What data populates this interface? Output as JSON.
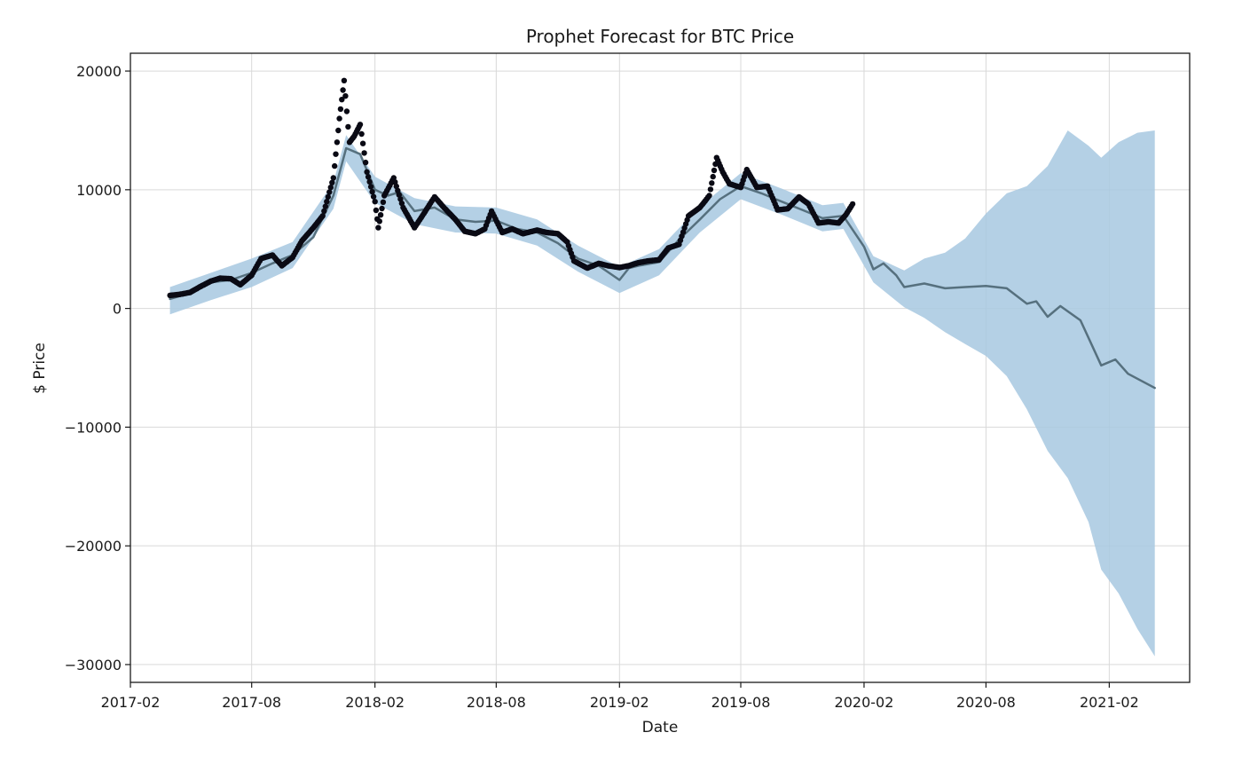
{
  "chart_data": {
    "type": "line",
    "title": "Prophet Forecast for BTC Price",
    "xlabel": "Date",
    "ylabel": "$ Price",
    "x_axis_type": "date",
    "xlim": [
      "2017-02-01",
      "2021-06-01"
    ],
    "ylim": [
      -31500,
      21500
    ],
    "grid": true,
    "x_ticks": [
      "2017-02",
      "2017-08",
      "2018-02",
      "2018-08",
      "2019-02",
      "2019-08",
      "2020-02",
      "2020-08",
      "2021-02"
    ],
    "y_ticks": [
      20000,
      10000,
      0,
      -10000,
      -20000,
      -30000
    ],
    "y_tick_labels": [
      "20000",
      "10000",
      "0",
      "−10000",
      "−20000",
      "−30000"
    ],
    "colors": {
      "observed": "#0a0a14",
      "forecast": "#56707e",
      "interval": "#a7c8e1"
    },
    "series": [
      {
        "kind": "observed_points",
        "points": [
          [
            "2017-04-01",
            1100
          ],
          [
            "2017-04-15",
            1180
          ],
          [
            "2017-05-01",
            1350
          ],
          [
            "2017-05-15",
            1800
          ],
          [
            "2017-06-01",
            2300
          ],
          [
            "2017-06-15",
            2550
          ],
          [
            "2017-07-01",
            2500
          ],
          [
            "2017-07-15",
            2000
          ],
          [
            "2017-08-01",
            2800
          ],
          [
            "2017-08-15",
            4200
          ],
          [
            "2017-09-01",
            4500
          ],
          [
            "2017-09-15",
            3600
          ],
          [
            "2017-10-01",
            4300
          ],
          [
            "2017-10-15",
            5700
          ],
          [
            "2017-11-01",
            6800
          ],
          [
            "2017-11-15",
            7800
          ],
          [
            "2017-12-01",
            11000
          ],
          [
            "2017-12-10",
            16000
          ],
          [
            "2017-12-17",
            19200
          ],
          [
            "2017-12-25",
            14000
          ],
          [
            "2018-01-01",
            14500
          ],
          [
            "2018-01-10",
            15500
          ],
          [
            "2018-01-20",
            11500
          ],
          [
            "2018-02-01",
            9000
          ],
          [
            "2018-02-06",
            6800
          ],
          [
            "2018-02-15",
            9500
          ],
          [
            "2018-03-01",
            11000
          ],
          [
            "2018-03-15",
            8500
          ],
          [
            "2018-04-01",
            6800
          ],
          [
            "2018-04-15",
            8000
          ],
          [
            "2018-05-01",
            9400
          ],
          [
            "2018-05-15",
            8500
          ],
          [
            "2018-06-01",
            7500
          ],
          [
            "2018-06-15",
            6500
          ],
          [
            "2018-07-01",
            6300
          ],
          [
            "2018-07-15",
            6700
          ],
          [
            "2018-07-25",
            8200
          ],
          [
            "2018-08-10",
            6400
          ],
          [
            "2018-08-25",
            6700
          ],
          [
            "2018-09-10",
            6300
          ],
          [
            "2018-10-01",
            6600
          ],
          [
            "2018-10-15",
            6400
          ],
          [
            "2018-11-01",
            6300
          ],
          [
            "2018-11-15",
            5600
          ],
          [
            "2018-11-25",
            4000
          ],
          [
            "2018-12-15",
            3400
          ],
          [
            "2019-01-01",
            3800
          ],
          [
            "2019-01-15",
            3600
          ],
          [
            "2019-02-01",
            3450
          ],
          [
            "2019-02-15",
            3600
          ],
          [
            "2019-03-01",
            3850
          ],
          [
            "2019-03-15",
            4000
          ],
          [
            "2019-04-01",
            4100
          ],
          [
            "2019-04-15",
            5100
          ],
          [
            "2019-05-01",
            5400
          ],
          [
            "2019-05-15",
            7800
          ],
          [
            "2019-06-01",
            8500
          ],
          [
            "2019-06-15",
            9500
          ],
          [
            "2019-06-26",
            12700
          ],
          [
            "2019-07-05",
            11500
          ],
          [
            "2019-07-15",
            10500
          ],
          [
            "2019-08-01",
            10200
          ],
          [
            "2019-08-10",
            11700
          ],
          [
            "2019-08-25",
            10200
          ],
          [
            "2019-09-10",
            10300
          ],
          [
            "2019-09-25",
            8300
          ],
          [
            "2019-10-10",
            8400
          ],
          [
            "2019-10-27",
            9400
          ],
          [
            "2019-11-10",
            8800
          ],
          [
            "2019-11-25",
            7200
          ],
          [
            "2019-12-10",
            7300
          ],
          [
            "2019-12-25",
            7200
          ],
          [
            "2020-01-05",
            7900
          ],
          [
            "2020-01-15",
            8800
          ]
        ]
      },
      {
        "kind": "forecast_line",
        "points": [
          [
            "2017-04-01",
            800
          ],
          [
            "2017-05-01",
            1300
          ],
          [
            "2017-06-01",
            2200
          ],
          [
            "2017-07-01",
            2400
          ],
          [
            "2017-08-01",
            3000
          ],
          [
            "2017-09-01",
            3800
          ],
          [
            "2017-10-01",
            4500
          ],
          [
            "2017-11-01",
            6000
          ],
          [
            "2017-12-01",
            9500
          ],
          [
            "2017-12-20",
            13500
          ],
          [
            "2018-01-10",
            13000
          ],
          [
            "2018-02-01",
            10000
          ],
          [
            "2018-02-20",
            9500
          ],
          [
            "2018-03-10",
            9800
          ],
          [
            "2018-04-01",
            8200
          ],
          [
            "2018-05-01",
            8500
          ],
          [
            "2018-06-01",
            7500
          ],
          [
            "2018-07-01",
            7300
          ],
          [
            "2018-08-01",
            7400
          ],
          [
            "2018-09-01",
            6700
          ],
          [
            "2018-10-01",
            6400
          ],
          [
            "2018-11-01",
            5500
          ],
          [
            "2018-12-01",
            4200
          ],
          [
            "2019-01-01",
            3600
          ],
          [
            "2019-02-01",
            2400
          ],
          [
            "2019-02-15",
            3400
          ],
          [
            "2019-03-01",
            3600
          ],
          [
            "2019-04-01",
            3900
          ],
          [
            "2019-05-01",
            5800
          ],
          [
            "2019-06-01",
            7500
          ],
          [
            "2019-07-01",
            9200
          ],
          [
            "2019-08-01",
            10300
          ],
          [
            "2019-09-01",
            9700
          ],
          [
            "2019-10-01",
            9000
          ],
          [
            "2019-11-01",
            8300
          ],
          [
            "2019-12-01",
            7600
          ],
          [
            "2020-01-01",
            7800
          ],
          [
            "2020-02-01",
            5200
          ],
          [
            "2020-02-15",
            3300
          ],
          [
            "2020-03-01",
            3800
          ],
          [
            "2020-03-20",
            2800
          ],
          [
            "2020-04-01",
            1800
          ],
          [
            "2020-05-01",
            2100
          ],
          [
            "2020-06-01",
            1700
          ],
          [
            "2020-07-01",
            1800
          ],
          [
            "2020-08-01",
            1900
          ],
          [
            "2020-09-01",
            1700
          ],
          [
            "2020-10-01",
            400
          ],
          [
            "2020-10-15",
            600
          ],
          [
            "2020-11-01",
            -700
          ],
          [
            "2020-11-20",
            200
          ],
          [
            "2020-12-20",
            -1000
          ],
          [
            "2021-01-20",
            -4800
          ],
          [
            "2021-02-10",
            -4300
          ],
          [
            "2021-03-01",
            -5500
          ],
          [
            "2021-04-10",
            -6700
          ]
        ]
      },
      {
        "kind": "uncertainty_interval",
        "points": [
          [
            "2017-04-01",
            -500,
            1800
          ],
          [
            "2017-06-01",
            700,
            3000
          ],
          [
            "2017-08-01",
            1800,
            4200
          ],
          [
            "2017-10-01",
            3400,
            5600
          ],
          [
            "2017-12-01",
            8400,
            10600
          ],
          [
            "2017-12-20",
            12400,
            14600
          ],
          [
            "2018-02-01",
            8900,
            11100
          ],
          [
            "2018-04-01",
            7100,
            9300
          ],
          [
            "2018-06-01",
            6400,
            8600
          ],
          [
            "2018-08-01",
            6300,
            8500
          ],
          [
            "2018-10-01",
            5300,
            7500
          ],
          [
            "2018-12-01",
            3100,
            5300
          ],
          [
            "2019-02-01",
            1300,
            3500
          ],
          [
            "2019-04-01",
            2800,
            5000
          ],
          [
            "2019-06-01",
            6400,
            8600
          ],
          [
            "2019-08-01",
            9200,
            11400
          ],
          [
            "2019-10-01",
            7900,
            10100
          ],
          [
            "2019-12-01",
            6500,
            8700
          ],
          [
            "2020-01-01",
            6700,
            8900
          ],
          [
            "2020-02-15",
            2200,
            4400
          ],
          [
            "2020-04-01",
            100,
            3200
          ],
          [
            "2020-05-01",
            -800,
            4200
          ],
          [
            "2020-06-01",
            -2000,
            4700
          ],
          [
            "2020-07-01",
            -3000,
            5900
          ],
          [
            "2020-08-01",
            -4000,
            8000
          ],
          [
            "2020-09-01",
            -5700,
            9700
          ],
          [
            "2020-10-01",
            -8500,
            10300
          ],
          [
            "2020-11-01",
            -12000,
            12000
          ],
          [
            "2020-12-01",
            -14300,
            15000
          ],
          [
            "2021-01-01",
            -18000,
            13700
          ],
          [
            "2021-01-20",
            -22000,
            12700
          ],
          [
            "2021-02-15",
            -24000,
            14000
          ],
          [
            "2021-03-15",
            -27000,
            14800
          ],
          [
            "2021-04-10",
            -29300,
            15000
          ]
        ]
      }
    ]
  }
}
